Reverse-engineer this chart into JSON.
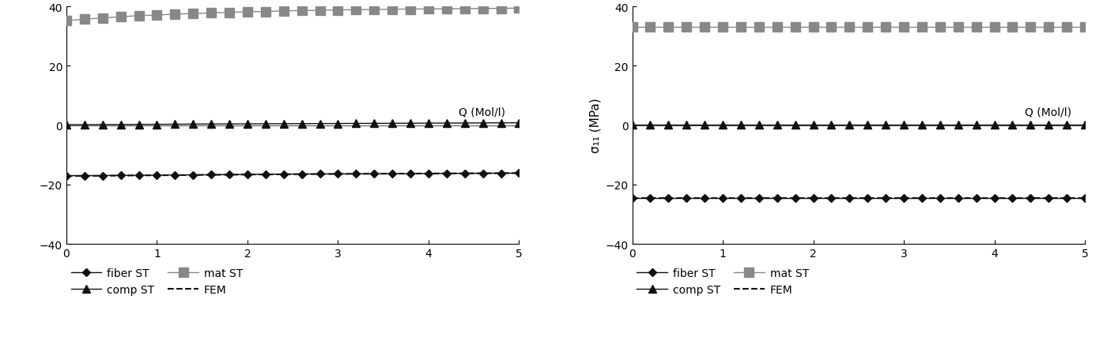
{
  "x": [
    0.0,
    0.2,
    0.4,
    0.6,
    0.8,
    1.0,
    1.2,
    1.4,
    1.6,
    1.8,
    2.0,
    2.2,
    2.4,
    2.6,
    2.8,
    3.0,
    3.2,
    3.4,
    3.6,
    3.8,
    4.0,
    4.2,
    4.4,
    4.6,
    4.8,
    5.0
  ],
  "left_mat_ST": [
    35.2,
    35.7,
    36.1,
    36.5,
    36.9,
    37.1,
    37.4,
    37.6,
    37.8,
    38.0,
    38.2,
    38.3,
    38.5,
    38.6,
    38.7,
    38.8,
    38.9,
    39.0,
    39.05,
    39.1,
    39.15,
    39.2,
    39.25,
    39.3,
    39.35,
    39.4
  ],
  "left_comp_ST": [
    0.15,
    0.18,
    0.2,
    0.22,
    0.25,
    0.28,
    0.3,
    0.35,
    0.38,
    0.4,
    0.42,
    0.45,
    0.48,
    0.5,
    0.52,
    0.55,
    0.57,
    0.6,
    0.62,
    0.65,
    0.68,
    0.7,
    0.72,
    0.75,
    0.78,
    0.8
  ],
  "left_fiber_ST": [
    -17.0,
    -17.0,
    -17.0,
    -16.9,
    -16.9,
    -16.85,
    -16.8,
    -16.75,
    -16.7,
    -16.65,
    -16.6,
    -16.55,
    -16.5,
    -16.48,
    -16.45,
    -16.42,
    -16.4,
    -16.38,
    -16.35,
    -16.32,
    -16.3,
    -16.27,
    -16.25,
    -16.22,
    -16.2,
    -16.18
  ],
  "left_FEM": [
    -17.1,
    -17.1,
    -17.05,
    -17.0,
    -16.95,
    -16.9,
    -16.85,
    -16.8,
    -16.75,
    -16.7,
    -16.65,
    -16.6,
    -16.55,
    -16.5,
    -16.47,
    -16.44,
    -16.41,
    -16.38,
    -16.35,
    -16.32,
    -16.29,
    -16.26,
    -16.23,
    -16.2,
    -16.17,
    -16.14
  ],
  "right_mat_ST": [
    33.0,
    33.0,
    33.0,
    33.0,
    33.0,
    33.0,
    33.0,
    33.0,
    33.0,
    33.0,
    33.0,
    33.0,
    33.0,
    33.0,
    33.0,
    33.0,
    33.0,
    33.0,
    33.0,
    33.0,
    33.0,
    33.0,
    33.0,
    33.0,
    33.0,
    33.0
  ],
  "right_comp_ST": [
    0.05,
    0.05,
    0.05,
    0.05,
    0.05,
    0.05,
    0.05,
    0.05,
    0.05,
    0.05,
    0.05,
    0.05,
    0.05,
    0.05,
    0.05,
    0.05,
    0.05,
    0.05,
    0.05,
    0.05,
    0.05,
    0.05,
    0.05,
    0.05,
    0.05,
    0.05
  ],
  "right_fiber_ST": [
    -24.5,
    -24.5,
    -24.5,
    -24.5,
    -24.5,
    -24.5,
    -24.5,
    -24.5,
    -24.5,
    -24.5,
    -24.5,
    -24.5,
    -24.5,
    -24.5,
    -24.5,
    -24.5,
    -24.5,
    -24.5,
    -24.5,
    -24.5,
    -24.5,
    -24.5,
    -24.5,
    -24.5,
    -24.5,
    -24.5
  ],
  "right_FEM": [
    -24.6,
    -24.6,
    -24.6,
    -24.6,
    -24.6,
    -24.6,
    -24.6,
    -24.6,
    -24.6,
    -24.6,
    -24.6,
    -24.6,
    -24.6,
    -24.6,
    -24.6,
    -24.6,
    -24.6,
    -24.6,
    -24.6,
    -24.6,
    -24.6,
    -24.6,
    -24.6,
    -24.6,
    -24.6,
    -24.6
  ],
  "xlim": [
    0,
    5
  ],
  "ylim": [
    -40,
    40
  ],
  "yticks": [
    -40,
    -20,
    0,
    20,
    40
  ],
  "xticks": [
    0,
    1,
    2,
    3,
    4,
    5
  ],
  "mat_color": "#888888",
  "fiber_color": "#111111",
  "comp_color": "#111111",
  "FEM_color": "#111111",
  "xlabel": "Q (Mol/l)",
  "right_ylabel": "σ₁₁ (MPa)",
  "background_color": "#ffffff"
}
